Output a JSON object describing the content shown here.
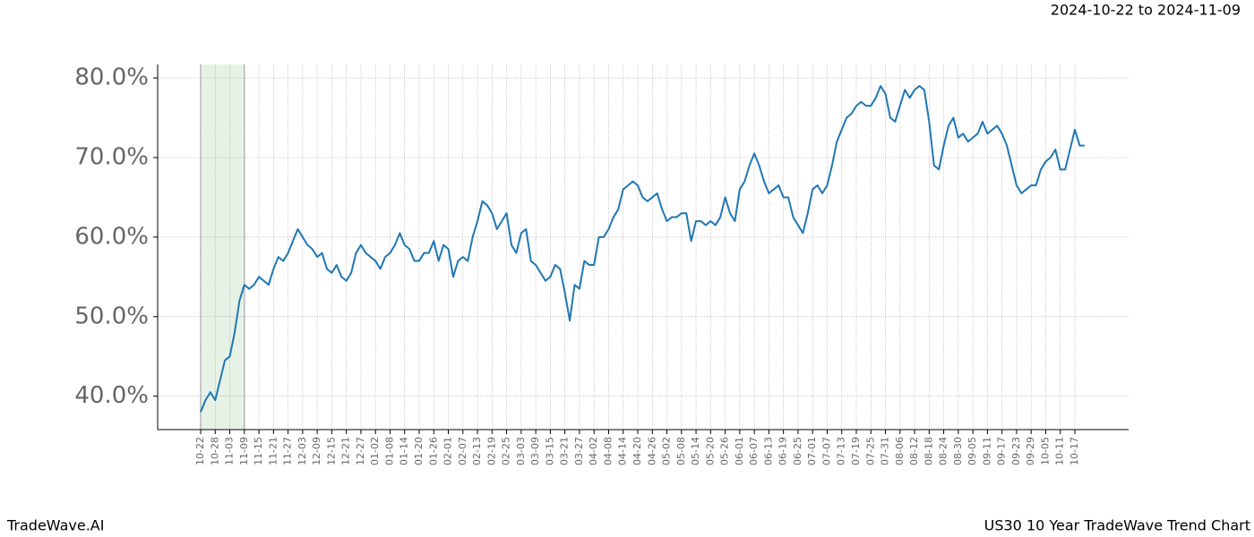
{
  "chart_data": {
    "type": "line",
    "title": "US30 10 Year TradeWave Trend Chart",
    "subtitle": "2024-10-22 to 2024-11-09",
    "brand": "TradeWave.AI",
    "highlight": [
      0,
      9
    ],
    "grid": true,
    "ylim": [
      35.8,
      81.7
    ],
    "yticks": [
      {
        "value": 40,
        "label": "40.0%"
      },
      {
        "value": 50,
        "label": "50.0%"
      },
      {
        "value": 60,
        "label": "60.0%"
      },
      {
        "value": 70,
        "label": "70.0%"
      },
      {
        "value": 80,
        "label": "80.0%"
      }
    ],
    "categories": [
      "10-22",
      null,
      null,
      "10-28",
      null,
      null,
      "11-03",
      null,
      null,
      "11-09",
      null,
      null,
      "11-15",
      null,
      null,
      "11-21",
      null,
      null,
      "11-27",
      null,
      null,
      "12-03",
      null,
      null,
      "12-09",
      null,
      null,
      "12-15",
      null,
      null,
      "12-21",
      null,
      null,
      "12-27",
      null,
      null,
      "01-02",
      null,
      null,
      "01-08",
      null,
      null,
      "01-14",
      null,
      null,
      "01-20",
      null,
      null,
      "01-26",
      null,
      null,
      "02-01",
      null,
      null,
      "02-07",
      null,
      null,
      "02-13",
      null,
      null,
      "02-19",
      null,
      null,
      "02-25",
      null,
      null,
      "03-03",
      null,
      null,
      "03-09",
      null,
      null,
      "03-15",
      null,
      null,
      "03-21",
      null,
      null,
      "03-27",
      null,
      null,
      "04-02",
      null,
      null,
      "04-08",
      null,
      null,
      "04-14",
      null,
      null,
      "04-20",
      null,
      null,
      "04-26",
      null,
      null,
      "05-02",
      null,
      null,
      "05-08",
      null,
      null,
      "05-14",
      null,
      null,
      "05-20",
      null,
      null,
      "05-26",
      null,
      null,
      "06-01",
      null,
      null,
      "06-07",
      null,
      null,
      "06-13",
      null,
      null,
      "06-19",
      null,
      null,
      "06-25",
      null,
      null,
      "07-01",
      null,
      null,
      "07-07",
      null,
      null,
      "07-13",
      null,
      null,
      "07-19",
      null,
      null,
      "07-25",
      null,
      null,
      "07-31",
      null,
      null,
      "08-06",
      null,
      null,
      "08-12",
      null,
      null,
      "08-18",
      null,
      null,
      "08-24",
      null,
      null,
      "08-30",
      null,
      null,
      "09-05",
      null,
      null,
      "09-11",
      null,
      null,
      "09-17",
      null,
      null,
      "09-23",
      null,
      null,
      "09-29",
      null,
      null,
      "10-05",
      null,
      null,
      "10-11",
      null,
      null,
      "10-17",
      null,
      null
    ],
    "series": [
      {
        "color": "#1f77b4",
        "values": [
          38,
          39.5,
          40.5,
          39.5,
          42,
          44.5,
          45,
          48,
          52,
          54,
          53.5,
          54,
          55,
          54.5,
          54,
          56,
          57.5,
          57,
          58,
          59.5,
          61,
          60,
          59,
          58.5,
          57.5,
          58,
          56,
          55.5,
          56.5,
          55,
          54.5,
          55.5,
          58,
          59,
          58,
          57.5,
          57,
          56,
          57.5,
          58,
          59,
          60.5,
          59,
          58.5,
          57,
          57,
          58,
          58,
          59.5,
          57,
          59,
          58.5,
          55,
          57,
          57.5,
          57,
          60,
          62,
          64.5,
          64,
          63,
          61,
          62,
          63,
          59,
          58,
          60.5,
          61,
          57,
          56.5,
          55.5,
          54.5,
          55,
          56.5,
          56,
          53,
          49.5,
          54,
          53.5,
          57,
          56.5,
          56.5,
          60,
          60,
          61,
          62.5,
          63.5,
          66,
          66.5,
          67,
          66.5,
          65,
          64.5,
          65,
          65.5,
          63.5,
          62,
          62.5,
          62.5,
          63,
          63,
          59.5,
          62,
          62,
          61.5,
          62,
          61.5,
          62.5,
          65,
          63,
          62,
          66,
          67,
          69,
          70.5,
          69,
          67,
          65.5,
          66,
          66.5,
          65,
          65,
          62.5,
          61.5,
          60.5,
          63,
          66,
          66.5,
          65.5,
          66.5,
          69,
          72,
          73.5,
          75,
          75.5,
          76.5,
          77,
          76.5,
          76.5,
          77.5,
          79,
          78,
          75,
          74.5,
          76.5,
          78.5,
          77.5,
          78.5,
          79,
          78.5,
          74.5,
          69,
          68.5,
          71.5,
          74,
          75,
          72.5,
          73,
          72,
          72.5,
          73,
          74.5,
          73,
          73.5,
          74,
          73,
          71.5,
          69,
          66.5,
          65.5,
          66,
          66.5,
          66.5,
          68.5,
          69.5,
          70,
          71,
          68.5,
          68.5,
          71,
          73.5,
          71.5,
          71.5
        ]
      }
    ]
  }
}
